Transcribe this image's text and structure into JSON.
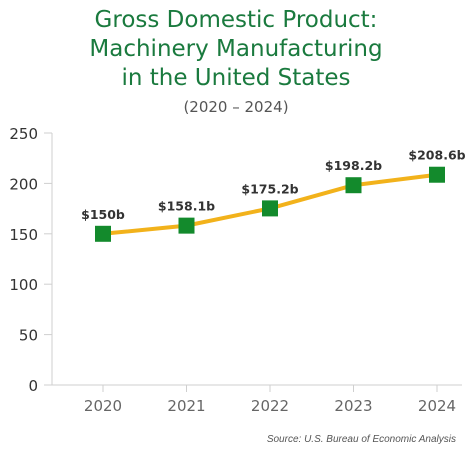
{
  "chart_data": {
    "type": "line",
    "title_lines": [
      "Gross Domestic Product:",
      "Machinery Manufacturing",
      "in the United States"
    ],
    "subtitle": "(2020 – 2024)",
    "categories": [
      "2020",
      "2021",
      "2022",
      "2023",
      "2024"
    ],
    "values": [
      150,
      158.1,
      175.2,
      198.2,
      208.6
    ],
    "data_labels": [
      "$150b",
      "$158.1b",
      "$175.2b",
      "$198.2b",
      "$208.6b"
    ],
    "y_ticks": [
      "0",
      "50",
      "100",
      "150",
      "200",
      "250"
    ],
    "ylim": [
      0,
      250
    ],
    "grid": false,
    "line_color": "#f2b21b",
    "marker_color": "#138a2c",
    "source": "Source: U.S. Bureau of Economic Analysis"
  }
}
